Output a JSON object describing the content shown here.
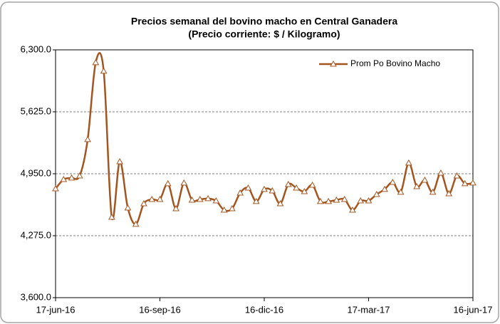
{
  "chart_data": {
    "type": "line",
    "title": "Precios semanal del bovino macho en Central Ganadera",
    "subtitle": "(Precio corriente: $ / Kilogramo)",
    "x": [
      "2016-06-17",
      "2016-06-24",
      "2016-07-01",
      "2016-07-08",
      "2016-07-15",
      "2016-07-22",
      "2016-07-29",
      "2016-08-05",
      "2016-08-12",
      "2016-08-19",
      "2016-08-26",
      "2016-09-02",
      "2016-09-09",
      "2016-09-16",
      "2016-09-23",
      "2016-09-30",
      "2016-10-07",
      "2016-10-14",
      "2016-10-21",
      "2016-10-28",
      "2016-11-04",
      "2016-11-11",
      "2016-11-18",
      "2016-11-25",
      "2016-12-02",
      "2016-12-09",
      "2016-12-16",
      "2016-12-23",
      "2016-12-30",
      "2017-01-06",
      "2017-01-13",
      "2017-01-20",
      "2017-01-27",
      "2017-02-03",
      "2017-02-10",
      "2017-02-17",
      "2017-02-24",
      "2017-03-03",
      "2017-03-10",
      "2017-03-17",
      "2017-03-24",
      "2017-03-31",
      "2017-04-07",
      "2017-04-14",
      "2017-04-21",
      "2017-04-28",
      "2017-05-05",
      "2017-05-12",
      "2017-05-19",
      "2017-05-26",
      "2017-06-02",
      "2017-06-09",
      "2017-06-16"
    ],
    "series": [
      {
        "name": "Prom Po Bovino Macho",
        "color": "#a4551f",
        "values": [
          4787,
          4888,
          4904,
          4927,
          5323,
          6161,
          6068,
          4477,
          5082,
          4578,
          4400,
          4624,
          4671,
          4671,
          4842,
          4570,
          4850,
          4663,
          4671,
          4679,
          4655,
          4554,
          4570,
          4741,
          4795,
          4648,
          4780,
          4764,
          4624,
          4834,
          4795,
          4756,
          4826,
          4648,
          4648,
          4663,
          4671,
          4554,
          4655,
          4655,
          4725,
          4780,
          4857,
          4749,
          5067,
          4810,
          4880,
          4749,
          4958,
          4733,
          4927,
          4842,
          4850
        ]
      }
    ],
    "xlim": [
      "2016-06-17",
      "2017-06-16"
    ],
    "xticks": [
      {
        "value": "2016-06-17",
        "label": "17-jun-16"
      },
      {
        "value": "2016-09-16",
        "label": "16-sep-16"
      },
      {
        "value": "2016-12-16",
        "label": "16-dic-16"
      },
      {
        "value": "2017-03-17",
        "label": "17-mar-17"
      },
      {
        "value": "2017-06-16",
        "label": "16-jun-17"
      }
    ],
    "ylim": [
      3600,
      6300
    ],
    "yticks": [
      {
        "value": 3600,
        "label": "3,600.0"
      },
      {
        "value": 4275,
        "label": "4,275.0"
      },
      {
        "value": 4950,
        "label": "4,950.0"
      },
      {
        "value": 5625,
        "label": "5,625.0"
      },
      {
        "value": 6300,
        "label": "6,300.0"
      }
    ],
    "grid": true,
    "legend": "top-right"
  }
}
